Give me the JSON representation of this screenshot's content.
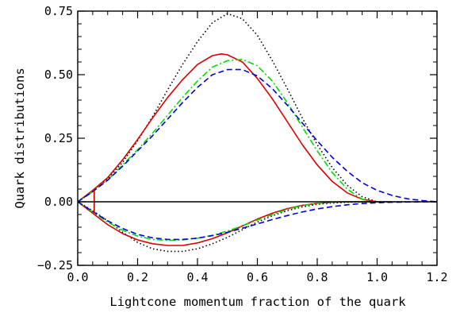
{
  "chart_data": {
    "type": "line",
    "title": "",
    "xlabel": "Lightcone momentum fraction of the quark",
    "ylabel": "Quark distributions",
    "xlim": [
      0.0,
      1.2
    ],
    "ylim": [
      -0.25,
      0.75
    ],
    "xticks": [
      0.0,
      0.2,
      0.4,
      0.6,
      0.8,
      1.0,
      1.2
    ],
    "xtick_labels": [
      "0.0",
      "0.2",
      "0.4",
      "0.6",
      "0.8",
      "1.0",
      "1.2"
    ],
    "yticks": [
      -0.25,
      0.0,
      0.25,
      0.5,
      0.75
    ],
    "ytick_labels": [
      "−0.25",
      "0.00",
      "0.25",
      "0.50",
      "0.75"
    ],
    "grid": false,
    "legend": "none",
    "reference_line": {
      "y": 0.0,
      "color": "#000000"
    },
    "series": [
      {
        "color": "#000000",
        "style": "dotted",
        "x": [
          0.0,
          0.05,
          0.1,
          0.15,
          0.2,
          0.25,
          0.3,
          0.35,
          0.4,
          0.45,
          0.5,
          0.55,
          0.6,
          0.65,
          0.7,
          0.75,
          0.8,
          0.85,
          0.9,
          0.95,
          1.0
        ],
        "y": [
          0.0,
          0.04,
          0.09,
          0.155,
          0.24,
          0.335,
          0.44,
          0.54,
          0.63,
          0.705,
          0.74,
          0.72,
          0.655,
          0.555,
          0.445,
          0.33,
          0.225,
          0.135,
          0.065,
          0.02,
          0.0
        ]
      },
      {
        "color": "#dd0000",
        "style": "solid",
        "x": [
          0.0,
          0.05,
          0.1,
          0.15,
          0.2,
          0.25,
          0.3,
          0.35,
          0.4,
          0.45,
          0.48,
          0.5,
          0.55,
          0.6,
          0.65,
          0.7,
          0.75,
          0.8,
          0.85,
          0.9,
          0.95,
          1.0
        ],
        "y": [
          0.0,
          0.045,
          0.095,
          0.165,
          0.245,
          0.33,
          0.41,
          0.48,
          0.54,
          0.575,
          0.582,
          0.578,
          0.55,
          0.485,
          0.405,
          0.315,
          0.225,
          0.145,
          0.08,
          0.035,
          0.01,
          0.0
        ]
      },
      {
        "color": "#00dd00",
        "style": "dash-dot",
        "x": [
          0.0,
          0.05,
          0.1,
          0.15,
          0.2,
          0.25,
          0.3,
          0.35,
          0.4,
          0.45,
          0.5,
          0.55,
          0.6,
          0.65,
          0.7,
          0.75,
          0.8,
          0.85,
          0.9,
          0.95,
          0.98,
          1.0
        ],
        "y": [
          0.0,
          0.04,
          0.085,
          0.145,
          0.205,
          0.27,
          0.34,
          0.41,
          0.475,
          0.53,
          0.555,
          0.56,
          0.535,
          0.475,
          0.39,
          0.295,
          0.2,
          0.115,
          0.05,
          0.01,
          0.0,
          0.0
        ]
      },
      {
        "color": "#0000dd",
        "style": "dashed",
        "x": [
          0.0,
          0.05,
          0.1,
          0.15,
          0.2,
          0.25,
          0.3,
          0.35,
          0.4,
          0.45,
          0.5,
          0.55,
          0.6,
          0.65,
          0.7,
          0.75,
          0.8,
          0.85,
          0.9,
          0.95,
          1.0,
          1.05,
          1.1,
          1.15,
          1.2
        ],
        "y": [
          0.0,
          0.04,
          0.085,
          0.14,
          0.2,
          0.26,
          0.325,
          0.39,
          0.45,
          0.5,
          0.52,
          0.52,
          0.495,
          0.445,
          0.38,
          0.31,
          0.24,
          0.175,
          0.12,
          0.075,
          0.045,
          0.025,
          0.012,
          0.005,
          0.0
        ]
      },
      {
        "color": "#000000",
        "style": "dotted",
        "x": [
          0.0,
          0.05,
          0.1,
          0.15,
          0.2,
          0.25,
          0.3,
          0.35,
          0.4,
          0.45,
          0.5,
          0.55,
          0.6,
          0.65,
          0.7,
          0.75,
          0.8,
          0.85,
          0.9,
          0.95,
          1.0,
          1.05,
          1.1
        ],
        "y": [
          0.0,
          -0.035,
          -0.075,
          -0.12,
          -0.16,
          -0.185,
          -0.195,
          -0.195,
          -0.185,
          -0.165,
          -0.14,
          -0.11,
          -0.08,
          -0.055,
          -0.035,
          -0.02,
          -0.01,
          -0.005,
          -0.002,
          -0.001,
          0.0,
          0.0,
          0.0
        ]
      },
      {
        "color": "#dd0000",
        "style": "solid",
        "x": [
          0.0,
          0.05,
          0.1,
          0.15,
          0.2,
          0.25,
          0.3,
          0.35,
          0.4,
          0.45,
          0.5,
          0.55,
          0.6,
          0.65,
          0.7,
          0.75,
          0.8,
          0.85,
          0.9,
          0.95,
          1.0,
          1.05
        ],
        "y": [
          0.0,
          -0.045,
          -0.09,
          -0.125,
          -0.15,
          -0.165,
          -0.172,
          -0.172,
          -0.162,
          -0.145,
          -0.122,
          -0.095,
          -0.068,
          -0.045,
          -0.027,
          -0.014,
          -0.006,
          -0.002,
          0.0,
          0.0,
          0.0,
          0.0
        ]
      },
      {
        "color": "#00dd00",
        "style": "dash-dot",
        "x": [
          0.0,
          0.05,
          0.1,
          0.15,
          0.2,
          0.25,
          0.3,
          0.35,
          0.4,
          0.45,
          0.5,
          0.55,
          0.6,
          0.65,
          0.7,
          0.75,
          0.8,
          0.85,
          0.9,
          0.95,
          1.0
        ],
        "y": [
          0.0,
          -0.04,
          -0.08,
          -0.112,
          -0.135,
          -0.148,
          -0.152,
          -0.15,
          -0.143,
          -0.132,
          -0.115,
          -0.095,
          -0.072,
          -0.05,
          -0.03,
          -0.015,
          -0.006,
          -0.002,
          0.0,
          0.0,
          0.0
        ]
      },
      {
        "color": "#0000dd",
        "style": "dashed",
        "x": [
          0.0,
          0.05,
          0.1,
          0.15,
          0.2,
          0.25,
          0.3,
          0.35,
          0.4,
          0.45,
          0.5,
          0.55,
          0.6,
          0.65,
          0.7,
          0.75,
          0.8,
          0.85,
          0.9,
          0.95,
          1.0,
          1.05,
          1.1,
          1.15,
          1.2
        ],
        "y": [
          0.0,
          -0.038,
          -0.075,
          -0.105,
          -0.128,
          -0.142,
          -0.148,
          -0.148,
          -0.143,
          -0.133,
          -0.12,
          -0.104,
          -0.087,
          -0.07,
          -0.054,
          -0.04,
          -0.028,
          -0.019,
          -0.012,
          -0.007,
          -0.004,
          -0.002,
          -0.001,
          0.0,
          0.0
        ]
      }
    ],
    "cutoff_marks": [
      {
        "x": 0.055,
        "y_from": -0.045,
        "y_to": 0.045,
        "color": "#dd0000"
      }
    ]
  }
}
